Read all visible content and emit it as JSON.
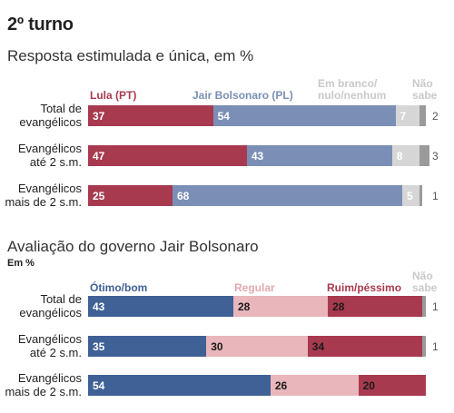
{
  "title": "2º turno",
  "chart_data": [
    {
      "type": "bar",
      "stacked": true,
      "orientation": "horizontal",
      "title": "Resposta estimulada e única, em %",
      "unit": "",
      "categories": [
        "Total de evangélicos",
        "Evangélicos até 2 s.m.",
        "Evangélicos mais de 2 s.m."
      ],
      "series": [
        {
          "name": "Lula (PT)",
          "values": [
            37,
            47,
            25
          ],
          "color": "#a83a4f"
        },
        {
          "name": "Jair Bolsonaro (PL)",
          "values": [
            54,
            43,
            68
          ],
          "color": "#7b8fb6"
        },
        {
          "name": "Em branco/ nulo/nenhum",
          "values": [
            7,
            8,
            5
          ],
          "color": "#d6d6d6"
        },
        {
          "name": "Não sabe",
          "values": [
            2,
            3,
            1
          ],
          "color": "#9a9a9a"
        }
      ]
    },
    {
      "type": "bar",
      "stacked": true,
      "orientation": "horizontal",
      "title": "Avaliação do governo Jair Bolsonaro",
      "unit": "Em %",
      "categories": [
        "Total de evangélicos",
        "Evangélicos até 2 s.m.",
        "Evangélicos mais de 2 s.m."
      ],
      "series": [
        {
          "name": "Ótimo/bom",
          "values": [
            43,
            35,
            54
          ],
          "color": "#3f6196"
        },
        {
          "name": "Regular",
          "values": [
            28,
            30,
            26
          ],
          "color": "#e8b6bb"
        },
        {
          "name": "Ruim/péssimo",
          "values": [
            28,
            34,
            20
          ],
          "color": "#a83a4f"
        },
        {
          "name": "Não sabe",
          "values": [
            1,
            1,
            0
          ],
          "color": "#9a9a9a"
        }
      ]
    }
  ]
}
